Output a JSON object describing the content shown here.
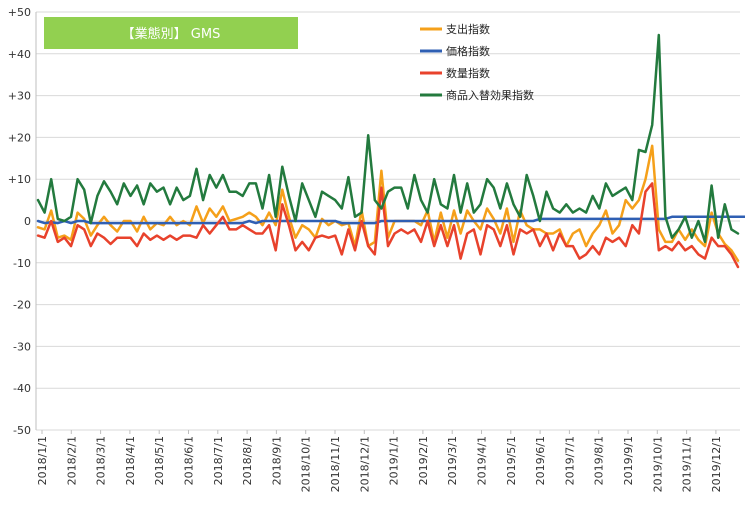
{
  "chart_data": {
    "type": "line",
    "title": "【業態別】 GMS",
    "ylim": [
      -50,
      50
    ],
    "yticks": [
      {
        "value": 50,
        "label": "+50"
      },
      {
        "value": 40,
        "label": "+40"
      },
      {
        "value": 30,
        "label": "+30"
      },
      {
        "value": 20,
        "label": "+20"
      },
      {
        "value": 10,
        "label": "+10"
      },
      {
        "value": 0,
        "label": "0"
      },
      {
        "value": -10,
        "label": "-10"
      },
      {
        "value": -20,
        "label": "-20"
      },
      {
        "value": -30,
        "label": "-30"
      },
      {
        "value": -40,
        "label": "-40"
      },
      {
        "value": -50,
        "label": "-50"
      }
    ],
    "x_tick_labels": [
      "2018/1/1",
      "2018/2/1",
      "2018/3/1",
      "2018/4/1",
      "2018/5/1",
      "2018/6/1",
      "2018/7/1",
      "2018/8/1",
      "2018/9/1",
      "2018/10/1",
      "2018/11/1",
      "2018/12/1",
      "2019/1/1",
      "2019/2/1",
      "2019/3/1",
      "2019/4/1",
      "2019/5/1",
      "2019/6/1",
      "2019/7/1",
      "2019/8/1",
      "2019/9/1",
      "2019/10/1",
      "2019/11/1",
      "2019/12/1"
    ],
    "grid": true,
    "legend_position": "top-right",
    "series": [
      {
        "name": "支出指数",
        "color": "#f5a01a",
        "values": [
          -1.5,
          -2,
          2.5,
          -4,
          -3.5,
          -4.5,
          2,
          0.5,
          -3.5,
          -1,
          1,
          -1,
          -2.5,
          0,
          0,
          -2.5,
          1,
          -2,
          -0.5,
          -1,
          1,
          -1,
          0,
          -1,
          3.5,
          -0.5,
          3,
          1,
          3.5,
          0,
          0.5,
          1,
          2,
          1,
          -1,
          2,
          -1,
          7.5,
          1,
          -4,
          -1,
          -2,
          -4,
          0.5,
          -1,
          0,
          -1,
          -0.5,
          -6,
          2.5,
          -6,
          -5,
          12,
          -4,
          0,
          0,
          0,
          0,
          -1,
          2.5,
          -5,
          2,
          -4,
          2.5,
          -3,
          2.5,
          0,
          -2,
          3,
          0.5,
          -3,
          3,
          -5,
          2.5,
          -1,
          -2,
          -2,
          -3,
          -3,
          -2,
          -6,
          -3,
          -2,
          -6,
          -3,
          -1,
          2.5,
          -3,
          -1,
          5,
          3,
          5,
          10,
          18,
          -2,
          -5,
          -5,
          -2,
          -4.5,
          -2,
          -4.5,
          -6,
          2,
          -3,
          -5.5,
          -7,
          -9.5
        ]
      },
      {
        "name": "価格指数",
        "color": "#2f5fb3",
        "values": [
          0,
          -0.5,
          -0.3,
          -0.5,
          0,
          -0.5,
          0,
          0,
          -0.5,
          -0.5,
          -0.5,
          -0.5,
          -0.5,
          -0.5,
          -0.5,
          -0.5,
          -0.5,
          -0.5,
          -0.5,
          -0.5,
          -0.5,
          -0.5,
          -0.5,
          -0.5,
          -0.5,
          -0.5,
          -0.5,
          -0.5,
          -0.5,
          -0.5,
          -0.5,
          -0.5,
          0,
          -0.5,
          0,
          0,
          0,
          0,
          0,
          0,
          0,
          0,
          0,
          0,
          0,
          0,
          -0.5,
          -0.5,
          -0.5,
          -0.5,
          -0.5,
          -0.5,
          0,
          0,
          0,
          0,
          0,
          0,
          0,
          0,
          0,
          0,
          0,
          0,
          0,
          0,
          0,
          0,
          0,
          0,
          0,
          0,
          0,
          0,
          0,
          0,
          0.5,
          0.5,
          0.5,
          0.5,
          0.5,
          0.5,
          0.5,
          0.5,
          0.5,
          0.5,
          0.5,
          0.5,
          0.5,
          0.5,
          0.5,
          0.5,
          0.5,
          0.5,
          0.5,
          0.5,
          1,
          1,
          1,
          1,
          1,
          1,
          1,
          1,
          1,
          1,
          1,
          1,
          1
        ]
      },
      {
        "name": "数量指数",
        "color": "#e8422c",
        "values": [
          -3.5,
          -4,
          0,
          -5,
          -4,
          -6,
          -1,
          -2,
          -6,
          -3,
          -4,
          -5.5,
          -4,
          -4,
          -4,
          -6,
          -3,
          -4.5,
          -3.5,
          -4.5,
          -3.5,
          -4.5,
          -3.5,
          -3.5,
          -4,
          -1,
          -3,
          -1,
          1,
          -2,
          -2,
          -1,
          -2,
          -3,
          -3,
          -1,
          -7,
          4,
          -1,
          -7,
          -5,
          -7,
          -4,
          -3.5,
          -4,
          -3.5,
          -8,
          -2,
          -7,
          0,
          -6,
          -8,
          8,
          -6,
          -3,
          -2,
          -3,
          -2,
          -5,
          0,
          -6,
          -1,
          -6,
          -1,
          -9,
          -3,
          -2,
          -8,
          -1,
          -2,
          -6,
          -1,
          -8,
          -2,
          -3,
          -2,
          -6,
          -3,
          -7,
          -3,
          -6,
          -6,
          -9,
          -8,
          -6,
          -8,
          -4,
          -5,
          -4,
          -6,
          -1,
          -3,
          7,
          9,
          -7,
          -6,
          -7,
          -5,
          -7,
          -6,
          -8,
          -9,
          -4,
          -6,
          -6,
          -8,
          -11
        ]
      },
      {
        "name": "商品入替効果指数",
        "color": "#237a3e",
        "values": [
          5,
          2,
          10,
          0.5,
          0,
          1,
          10,
          7.5,
          -0.5,
          6,
          9.5,
          7,
          4,
          9,
          6,
          8.5,
          4,
          9,
          7,
          8,
          4,
          8,
          5,
          6,
          12.5,
          5,
          11,
          8,
          11,
          7,
          7,
          6,
          9,
          9,
          3,
          11,
          1,
          13,
          6,
          0,
          9,
          5,
          1,
          7,
          6,
          5,
          3,
          10.5,
          1,
          2,
          20.5,
          5,
          3,
          7,
          8,
          8,
          3,
          11,
          5,
          2,
          10,
          4,
          3,
          11,
          2,
          9,
          2,
          4,
          10,
          8,
          3,
          9,
          4,
          1,
          11,
          6,
          0,
          7,
          3,
          2,
          4,
          2,
          3,
          2,
          6,
          3,
          9,
          6,
          7,
          8,
          5,
          17,
          16.5,
          23,
          44.5,
          1,
          -4,
          -2,
          1,
          -4,
          0,
          -5,
          8.5,
          -4,
          4,
          -2,
          -3
        ]
      }
    ]
  }
}
